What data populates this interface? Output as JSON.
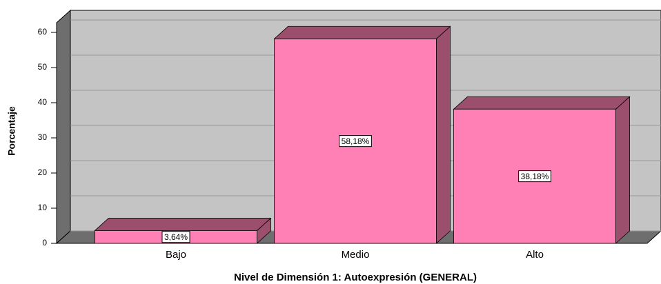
{
  "chart_data": {
    "type": "bar3d",
    "x_label": "Nivel de Dimensión 1: Autoexpresión (GENERAL)",
    "y_label": "Porcentaje",
    "categories": [
      "Bajo",
      "Medio",
      "Alto"
    ],
    "values": [
      3.64,
      58.18,
      38.18
    ],
    "value_labels": [
      "3,64%",
      "58,18%",
      "38,18%"
    ],
    "color": "#ff80b4",
    "shade_color": "#9c4f6c",
    "ylim": [
      0,
      63
    ],
    "yticks": [
      0,
      10,
      20,
      30,
      40,
      50,
      60
    ],
    "grid": true
  }
}
